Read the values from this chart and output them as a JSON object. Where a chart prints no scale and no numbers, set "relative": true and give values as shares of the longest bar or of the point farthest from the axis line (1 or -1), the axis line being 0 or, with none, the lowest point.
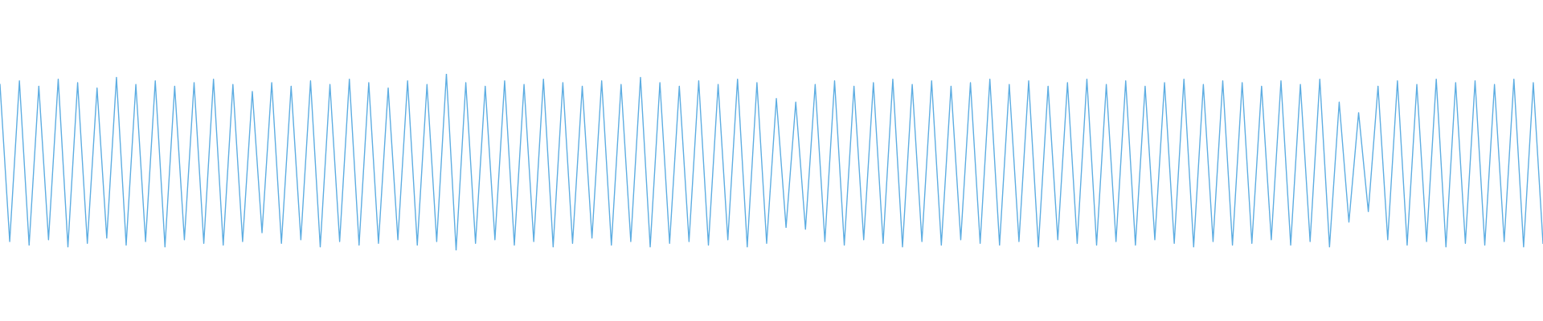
{
  "chart_data": {
    "type": "line",
    "relative": true,
    "color": "#5dade2",
    "line_style": "solid",
    "marker": "none",
    "grid": false,
    "legend": false,
    "categories": [
      null,
      null,
      null,
      null,
      null,
      null,
      null,
      null,
      null,
      null,
      null,
      null,
      null,
      null,
      null,
      null,
      null,
      null,
      null,
      null,
      null,
      null,
      null,
      null,
      null,
      null,
      null,
      null,
      null,
      null,
      null,
      null,
      null,
      null,
      null,
      null,
      null,
      null,
      null,
      null,
      null,
      null,
      null,
      null,
      null,
      null,
      null,
      null,
      null,
      null,
      null,
      null,
      null,
      null,
      null,
      null,
      null,
      null,
      null,
      null,
      null,
      null,
      null,
      null,
      null,
      null,
      null,
      null,
      null,
      null,
      null,
      null,
      null,
      null,
      null,
      null,
      null,
      null,
      null,
      null,
      null,
      null,
      null,
      null,
      null,
      null,
      null,
      null,
      null,
      null,
      null,
      null,
      null,
      null,
      null,
      null,
      null,
      null,
      null,
      null,
      null,
      null,
      null,
      null,
      null,
      null,
      null,
      null,
      null,
      null,
      null,
      null,
      null,
      null,
      null,
      null,
      null,
      null,
      null,
      null,
      null,
      null,
      null,
      null,
      null,
      null,
      null,
      null,
      null,
      null,
      null,
      null,
      null,
      null,
      null,
      null,
      null,
      null,
      null,
      null,
      null,
      null,
      null,
      null,
      null,
      null,
      null,
      null,
      null,
      null,
      null,
      null,
      null,
      null,
      null,
      null,
      null,
      null,
      null,
      null
    ],
    "values": [
      0.94,
      0.05,
      0.96,
      0.03,
      0.93,
      0.06,
      0.97,
      0.02,
      0.95,
      0.04,
      0.92,
      0.07,
      0.98,
      0.03,
      0.94,
      0.05,
      0.96,
      0.02,
      0.93,
      0.06,
      0.95,
      0.04,
      0.97,
      0.03,
      0.94,
      0.05,
      0.9,
      0.1,
      0.95,
      0.04,
      0.93,
      0.06,
      0.96,
      0.02,
      0.94,
      0.05,
      0.97,
      0.03,
      0.95,
      0.04,
      0.92,
      0.06,
      0.96,
      0.03,
      0.94,
      0.05,
      1,
      0,
      0.95,
      0.04,
      0.93,
      0.06,
      0.96,
      0.03,
      0.94,
      0.05,
      0.97,
      0.02,
      0.95,
      0.04,
      0.93,
      0.07,
      0.96,
      0.03,
      0.94,
      0.05,
      0.98,
      0.02,
      0.95,
      0.04,
      0.93,
      0.05,
      0.96,
      0.03,
      0.94,
      0.06,
      0.97,
      0.02,
      0.95,
      0.04,
      0.86,
      0.13,
      0.84,
      0.12,
      0.94,
      0.05,
      0.96,
      0.03,
      0.93,
      0.06,
      0.95,
      0.04,
      0.97,
      0.02,
      0.94,
      0.05,
      0.96,
      0.03,
      0.93,
      0.06,
      0.95,
      0.04,
      0.97,
      0.03,
      0.94,
      0.05,
      0.96,
      0.02,
      0.93,
      0.06,
      0.95,
      0.04,
      0.97,
      0.03,
      0.94,
      0.05,
      0.96,
      0.03,
      0.93,
      0.06,
      0.95,
      0.04,
      0.97,
      0.02,
      0.94,
      0.05,
      0.96,
      0.03,
      0.95,
      0.04,
      0.93,
      0.06,
      0.96,
      0.03,
      0.94,
      0.05,
      0.97,
      0.02,
      0.84,
      0.16,
      0.78,
      0.22,
      0.93,
      0.06,
      0.96,
      0.03,
      0.94,
      0.05,
      0.97,
      0.02,
      0.95,
      0.04,
      0.96,
      0.03,
      0.94,
      0.05,
      0.97,
      0.02,
      0.95,
      0.04
    ]
  }
}
